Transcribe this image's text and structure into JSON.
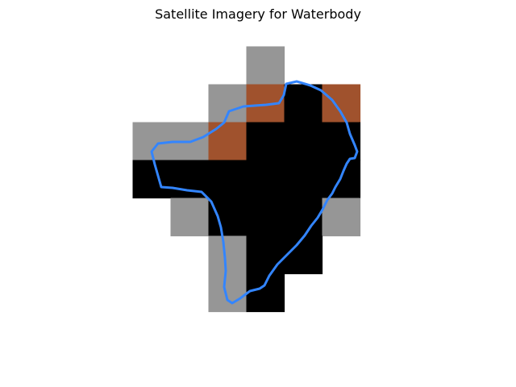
{
  "title": "Satellite Imagery for Waterbody",
  "colors": {
    "water": "#000000",
    "land": "#969696",
    "soil": "#a0522d",
    "boundary": "#3385ff",
    "background": "#ffffff"
  },
  "grid": {
    "columns": 6,
    "rows": 7,
    "cells": [
      [
        null,
        null,
        null,
        "land",
        null,
        null
      ],
      [
        null,
        null,
        "land",
        "soil",
        "water",
        "soil"
      ],
      [
        "land",
        "land",
        "soil",
        "water",
        "water",
        "water"
      ],
      [
        "water",
        "water",
        "water",
        "water",
        "water",
        "water"
      ],
      [
        null,
        "land",
        "water",
        "water",
        "water",
        "land"
      ],
      [
        null,
        null,
        "land",
        "water",
        "water",
        null
      ],
      [
        null,
        null,
        "land",
        "water",
        null,
        null
      ]
    ]
  }
}
